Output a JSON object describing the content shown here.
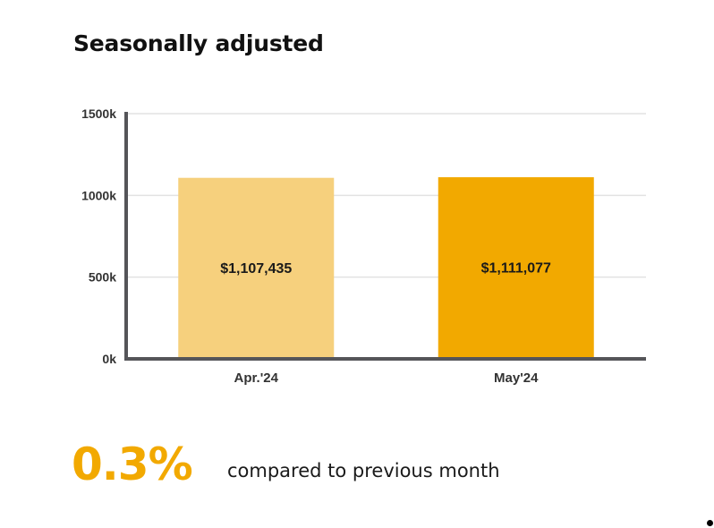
{
  "title": "Seasonally adjusted",
  "chart_data": {
    "type": "bar",
    "categories": [
      "Apr.'24",
      "May'24"
    ],
    "values": [
      1107435,
      1111077
    ],
    "data_labels": [
      "$1,107,435",
      "$1,111,077"
    ],
    "colors": [
      "#f6d07d",
      "#f2a900"
    ],
    "ylim": [
      0,
      1500000
    ],
    "yticks": [
      0,
      500000,
      1000000,
      1500000
    ],
    "ytick_labels": [
      "0k",
      "500k",
      "1000k",
      "1500k"
    ],
    "xlabel": "",
    "ylabel": "",
    "grid": true
  },
  "summary": {
    "change_value": "0.3%",
    "change_text": "compared to previous month",
    "accent_color": "#f2a900"
  }
}
